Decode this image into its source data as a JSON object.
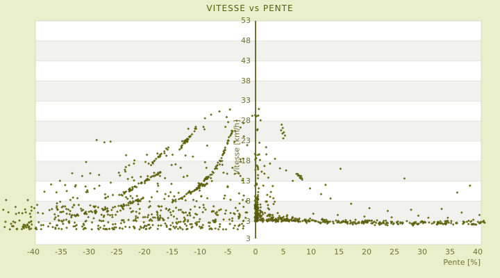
{
  "chart_data": {
    "type": "scatter",
    "title": "VITESSE vs PENTE",
    "xlabel": "Pente [%]",
    "ylabel": "Vitesse [km/h]",
    "x_ticks": [
      -40,
      -35,
      -30,
      -25,
      -20,
      -15,
      -10,
      -5,
      0,
      5,
      10,
      15,
      20,
      25,
      30,
      35,
      40
    ],
    "y_ticks": [
      53,
      48,
      43,
      38,
      33,
      28,
      23,
      18,
      13,
      8,
      3
    ],
    "y_axis_bottom_label": "3",
    "x_plot_range": [
      -39.6,
      40.6
    ],
    "y_plot_range": [
      -2.8,
      53
    ],
    "x_data_range": [
      -46,
      41.3
    ],
    "y_data_range": [
      0,
      31.5
    ],
    "band_step": 5,
    "grid_bands": "horizontal alternating stripes every 5 km/h",
    "legend": null,
    "approx_point_count": 1300,
    "colors": {
      "page_bg": "#e9eecb",
      "plot_bg": "#ffffff",
      "band_gray": "#f1f1ed",
      "band_line": "#e3e3de",
      "plot_border": "#d9dacb",
      "axis_line": "#454c09",
      "point_fill": "#6d7217",
      "point_stroke": "#50560e",
      "text": "#6e7330",
      "title_text": "#55600f"
    },
    "scatter_spec": {
      "seed": 42,
      "marker": "diamond",
      "marker_radius": 1.6,
      "envelope": [
        [
          -46,
          8
        ],
        [
          -40,
          9.5
        ],
        [
          -35,
          12
        ],
        [
          -30,
          16
        ],
        [
          -25,
          19
        ],
        [
          -20,
          21.5
        ],
        [
          -15,
          24
        ],
        [
          -10,
          28
        ],
        [
          -5,
          30.5
        ],
        [
          -1,
          31
        ]
      ],
      "layers": [
        {
          "kind": "pow",
          "n": 270,
          "x": [
            -46,
            -2,
            1
          ],
          "base": 1.0,
          "amp": 5.8,
          "p": 1.8
        },
        {
          "kind": "env",
          "n": 220,
          "x": [
            -36,
            -1.5,
            0.88
          ],
          "base": 2.5,
          "off": 4,
          "p": 1.55,
          "jit": 0.8
        },
        {
          "kind": "pow",
          "n": 80,
          "x": [
            -0.12,
            0.45,
            1
          ],
          "base": 3,
          "amp": 5.5,
          "p": 1.3
        },
        {
          "kind": "pow",
          "n": 30,
          "x": [
            -0.12,
            0.45,
            1
          ],
          "base": 8.5,
          "amp": 22,
          "p": 2.6
        },
        {
          "kind": "decay",
          "n": 300,
          "x": [
            0.4,
            41.3,
            1.3
          ],
          "base": 2.5,
          "a": 1.15,
          "t1": 14,
          "noise": 0.5,
          "fz": 3.2,
          "t2": 2.6,
          "p": 2
        },
        {
          "kind": "fan",
          "n": 60,
          "x": [
            0.35,
            7.3,
            1.7
          ],
          "base": 3.2,
          "amp": 24,
          "t": 2.4,
          "p": 2.2
        },
        {
          "kind": "pow",
          "n": 8,
          "x": [
            -42,
            -40.6,
            1
          ],
          "base": 1.1,
          "amp": 1.3,
          "p": 1
        }
      ],
      "trails": [
        {
          "pts": [
            [
              -24.5,
              9.3
            ],
            [
              -17,
              15.3
            ]
          ],
          "n": 50
        },
        {
          "pts": [
            [
              -15,
              7.8
            ],
            [
              -8.2,
              12.8
            ]
          ],
          "n": 40
        },
        {
          "pts": [
            [
              -10.8,
              11.0
            ],
            [
              -7.5,
              15.5
            ],
            [
              -5.6,
              20.0
            ],
            [
              -4.3,
              25.5
            ]
          ],
          "n": 55
        },
        {
          "pts": [
            [
              -14,
              20.5
            ],
            [
              -10.5,
              26.6
            ]
          ],
          "n": 26
        },
        {
          "pts": [
            [
              -27,
              5.5
            ],
            [
              -20,
              8.8
            ]
          ],
          "n": 28
        },
        {
          "pts": [
            [
              -34,
              4.0
            ],
            [
              -26.5,
              6.2
            ]
          ],
          "n": 22
        },
        {
          "pts": [
            [
              -19.5,
              16.5
            ],
            [
              -15.5,
              21.5
            ]
          ],
          "n": 16
        },
        {
          "pts": [
            [
              7.2,
              15.2
            ],
            [
              8.6,
              13.2
            ]
          ],
          "n": 9
        }
      ],
      "extra_points": [
        [
          -27.2,
          22.7
        ],
        [
          -28.6,
          23.3
        ],
        [
          -26.1,
          22.9
        ],
        [
          -35.2,
          13.1
        ],
        [
          -38,
          10.4
        ],
        [
          -41,
          8.3
        ],
        [
          -44.9,
          8.3
        ],
        [
          -45.4,
          5.9
        ],
        [
          -43.2,
          6.6
        ],
        [
          -36.8,
          12.2
        ],
        [
          -33,
          15
        ],
        [
          -31.2,
          14.3
        ],
        [
          -8,
          29.6
        ],
        [
          -6.5,
          30.4
        ],
        [
          -5.2,
          29
        ],
        [
          -4.6,
          30.9
        ],
        [
          -9.1,
          28.7
        ],
        [
          -12.1,
          26.1
        ],
        [
          -3.4,
          28.1
        ],
        [
          -2.7,
          26.4
        ],
        [
          -2.1,
          24.2
        ],
        [
          -1.5,
          22
        ],
        [
          -30.5,
          17.8
        ],
        [
          -23.3,
          19.5
        ],
        [
          -21.8,
          18.2
        ],
        [
          -17.5,
          19.0
        ],
        [
          -13.2,
          23.0
        ],
        [
          -40.6,
          4.9
        ],
        [
          -42.5,
          3.2
        ],
        [
          -44,
          2.4
        ],
        [
          -45.8,
          3.6
        ],
        [
          -39.3,
          7.1
        ],
        [
          -37.1,
          5.8
        ],
        [
          4.7,
          27.1
        ],
        [
          4.9,
          26.3
        ],
        [
          5.1,
          25.2
        ],
        [
          4.6,
          25.7
        ],
        [
          5.3,
          24.4
        ],
        [
          4.85,
          24.9
        ],
        [
          5.0,
          23.7
        ],
        [
          0.9,
          28.2
        ],
        [
          0.6,
          31.0
        ],
        [
          0.5,
          29.4
        ],
        [
          -0.6,
          29.3
        ],
        [
          1.9,
          21.5
        ],
        [
          1.95,
          19.7
        ],
        [
          2.6,
          17.4
        ],
        [
          3.5,
          18.6
        ],
        [
          4.4,
          16.2
        ],
        [
          5.5,
          15.7
        ],
        [
          7.6,
          14.8
        ],
        [
          8.0,
          13.9
        ],
        [
          8.4,
          13.4
        ],
        [
          15.3,
          16.1
        ],
        [
          26.8,
          13.7
        ],
        [
          38.6,
          11.9
        ],
        [
          36.3,
          10.2
        ],
        [
          28,
          5.9
        ],
        [
          31.1,
          3.9
        ],
        [
          37.1,
          5.2
        ],
        [
          33.5,
          6.1
        ],
        [
          11.8,
          9.8
        ],
        [
          13.5,
          8.7
        ],
        [
          17.2,
          7.4
        ],
        [
          20.5,
          6.3
        ],
        [
          23.8,
          5.6
        ],
        [
          9.8,
          11.2
        ],
        [
          6.7,
          13.1
        ],
        [
          12.6,
          12.1
        ],
        [
          2.3,
          13.9
        ],
        [
          3.1,
          11.8
        ],
        [
          40.3,
          4.6
        ],
        [
          39.2,
          3.4
        ],
        [
          10.4,
          4.9
        ],
        [
          14.8,
          4.6
        ],
        [
          19.6,
          4.2
        ],
        [
          24.5,
          4.0
        ],
        [
          29.3,
          4.4
        ],
        [
          34.6,
          3.9
        ],
        [
          40.9,
          2.9
        ],
        [
          2.1,
          9.6
        ],
        [
          1.4,
          11.9
        ],
        [
          1.1,
          15.4
        ],
        [
          0.8,
          18.3
        ],
        [
          0.7,
          22.6
        ],
        [
          1.6,
          16.8
        ]
      ]
    }
  }
}
